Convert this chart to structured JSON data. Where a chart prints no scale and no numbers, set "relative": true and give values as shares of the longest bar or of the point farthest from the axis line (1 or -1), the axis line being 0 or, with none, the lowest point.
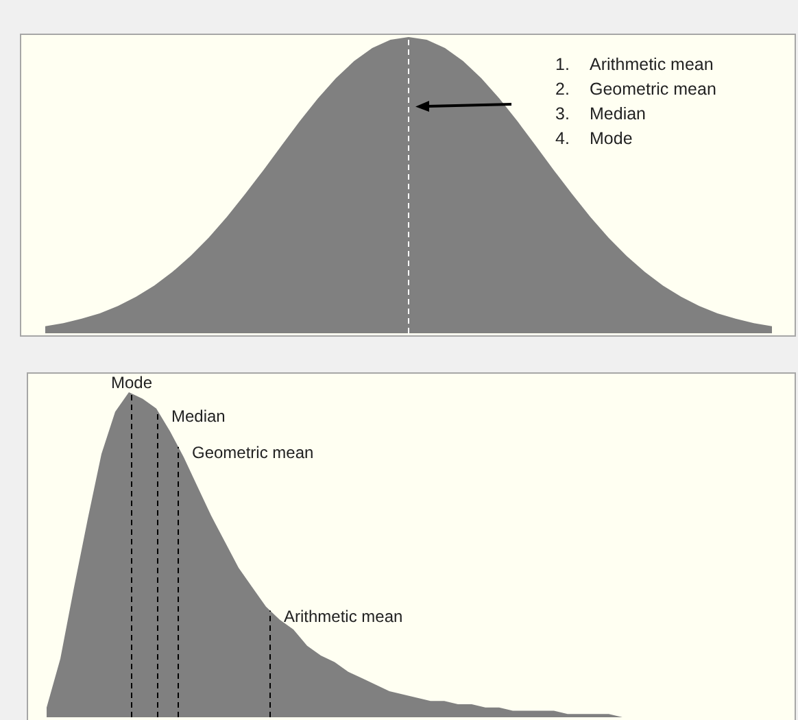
{
  "chart_data": [
    {
      "type": "area",
      "relative": true,
      "categories": [
        null,
        null,
        null,
        null,
        null,
        null,
        null,
        null,
        null,
        null,
        null,
        null,
        null,
        null,
        null,
        null,
        null,
        null,
        null,
        null,
        null,
        null,
        null,
        null,
        null,
        null,
        null,
        null,
        null,
        null,
        null,
        null,
        null,
        null,
        null,
        null,
        null,
        null,
        null,
        null,
        null
      ],
      "series": [
        {
          "color": "#808080",
          "values": [
            0.024,
            0.034,
            0.049,
            0.067,
            0.092,
            0.123,
            0.161,
            0.207,
            0.261,
            0.323,
            0.393,
            0.47,
            0.55,
            0.633,
            0.715,
            0.792,
            0.861,
            0.919,
            0.963,
            0.991,
            1,
            0.991,
            0.963,
            0.919,
            0.861,
            0.792,
            0.715,
            0.633,
            0.55,
            0.47,
            0.393,
            0.323,
            0.261,
            0.207,
            0.161,
            0.123,
            0.092,
            0.067,
            0.049,
            0.034,
            0.024
          ]
        }
      ],
      "annotations": [
        "1. Arithmetic mean",
        "2. Geometric mean",
        "3. Median",
        "4. Mode"
      ]
    },
    {
      "type": "area",
      "relative": true,
      "categories": [
        null,
        null,
        null,
        null,
        null,
        null,
        null,
        null,
        null,
        null,
        null,
        null,
        null,
        null,
        null,
        null,
        null,
        null,
        null,
        null,
        null,
        null,
        null,
        null,
        null,
        null,
        null,
        null,
        null,
        null,
        null,
        null,
        null,
        null,
        null,
        null,
        null,
        null,
        null,
        null,
        null,
        null,
        null,
        null,
        null
      ],
      "series": [
        {
          "color": "#808080",
          "values": [
            0.03,
            0.18,
            0.4,
            0.61,
            0.81,
            0.94,
            1,
            0.98,
            0.95,
            0.88,
            0.8,
            0.71,
            0.62,
            0.54,
            0.46,
            0.4,
            0.34,
            0.3,
            0.27,
            0.22,
            0.19,
            0.17,
            0.14,
            0.12,
            0.1,
            0.08,
            0.07,
            0.06,
            0.05,
            0.05,
            0.04,
            0.04,
            0.03,
            0.03,
            0.02,
            0.02,
            0.02,
            0.02,
            0.01,
            0.01,
            0.01,
            0.01,
            0,
            0,
            0
          ]
        }
      ],
      "annotations": [
        "Mode",
        "Median",
        "Geometric mean",
        "Arithmetic mean"
      ]
    }
  ]
}
